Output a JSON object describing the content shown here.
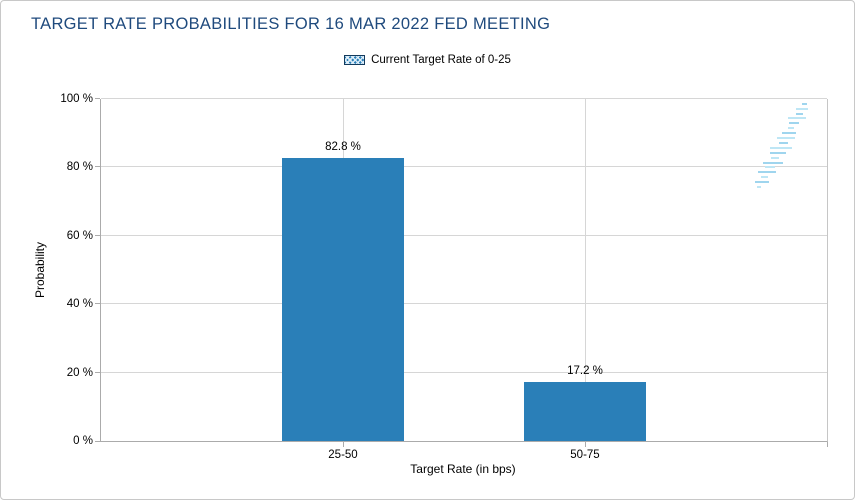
{
  "title": "TARGET RATE PROBABILITIES FOR 16 MAR 2022 FED MEETING",
  "legend": {
    "label": "Current Target Rate of 0-25"
  },
  "watermark": {
    "letter": "Q"
  },
  "colors": {
    "bar": "#2A7FB8",
    "title_text": "#1F4A7D",
    "axis_line": "#ABABAB",
    "gridline": "#D6D6D6",
    "watermark_gray": "#D5D5D5",
    "watermark_blue_light": "#BEE6F5",
    "watermark_blue": "#9FD5EE"
  },
  "chart_data": {
    "type": "bar",
    "title": "TARGET RATE PROBABILITIES FOR 16 MAR 2022 FED MEETING",
    "categories": [
      "25-50",
      "50-75"
    ],
    "values": [
      82.8,
      17.2
    ],
    "value_labels": [
      "82.8 %",
      "17.2 %"
    ],
    "series_name": "Current Target Rate of 0-25",
    "xlabel": "Target Rate (in bps)",
    "ylabel": "Probability",
    "ylim": [
      0,
      100
    ],
    "yticks": [
      0,
      20,
      40,
      60,
      80,
      100
    ],
    "ytick_labels": [
      "0 %",
      "20 %",
      "40 %",
      "60 %",
      "80 %",
      "100 %"
    ],
    "grid": true,
    "legend_position": "top-center",
    "bar_color": "#2A7FB8"
  }
}
